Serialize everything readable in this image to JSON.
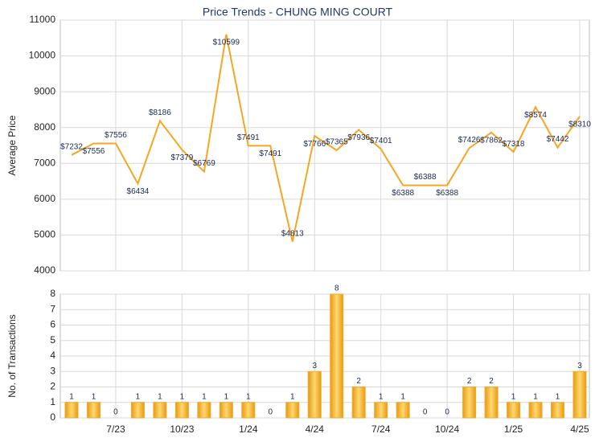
{
  "chart_data": [
    {
      "type": "line",
      "title": "Price Trends - CHUNG MING COURT",
      "ylabel": "Average Price",
      "color": "#f5a623",
      "values": [
        7232,
        7556,
        7556,
        6434,
        8186,
        7379,
        6769,
        10599,
        7491,
        7491,
        4813,
        7766,
        7365,
        7936,
        7401,
        6388,
        6388,
        6388,
        7426,
        7862,
        7318,
        8574,
        7442,
        8310
      ],
      "value_labels": [
        "$7232",
        "$7556",
        "$7556",
        "$6434",
        "$8186",
        "$7379",
        "$6769",
        "$10599",
        "$7491",
        "$7491",
        "$4813",
        "$7766",
        "$7365",
        "$7936",
        "$7401",
        "$6388",
        "$6388",
        "$6388",
        "$7426",
        "$7862",
        "$7318",
        "$8574",
        "$7442",
        "$8310"
      ],
      "ylim": [
        4000,
        11000
      ],
      "yticks": [
        4000,
        5000,
        6000,
        7000,
        8000,
        9000,
        10000,
        11000
      ],
      "grid": true
    },
    {
      "type": "bar",
      "ylabel": "No. of Transactions",
      "color": "#f0a92c",
      "categories": [
        null,
        null,
        "7/23",
        null,
        null,
        "10/23",
        null,
        null,
        "1/24",
        null,
        null,
        "4/24",
        null,
        null,
        "7/24",
        null,
        null,
        "10/24",
        null,
        null,
        "1/25",
        null,
        null,
        "4/25"
      ],
      "values": [
        1,
        1,
        0,
        1,
        1,
        1,
        1,
        1,
        1,
        0,
        1,
        3,
        8,
        2,
        1,
        1,
        0,
        0,
        2,
        2,
        1,
        1,
        1,
        3
      ],
      "ylim": [
        0,
        8
      ],
      "yticks": [
        0,
        1,
        2,
        3,
        4,
        5,
        6,
        7,
        8
      ],
      "grid": true
    }
  ]
}
